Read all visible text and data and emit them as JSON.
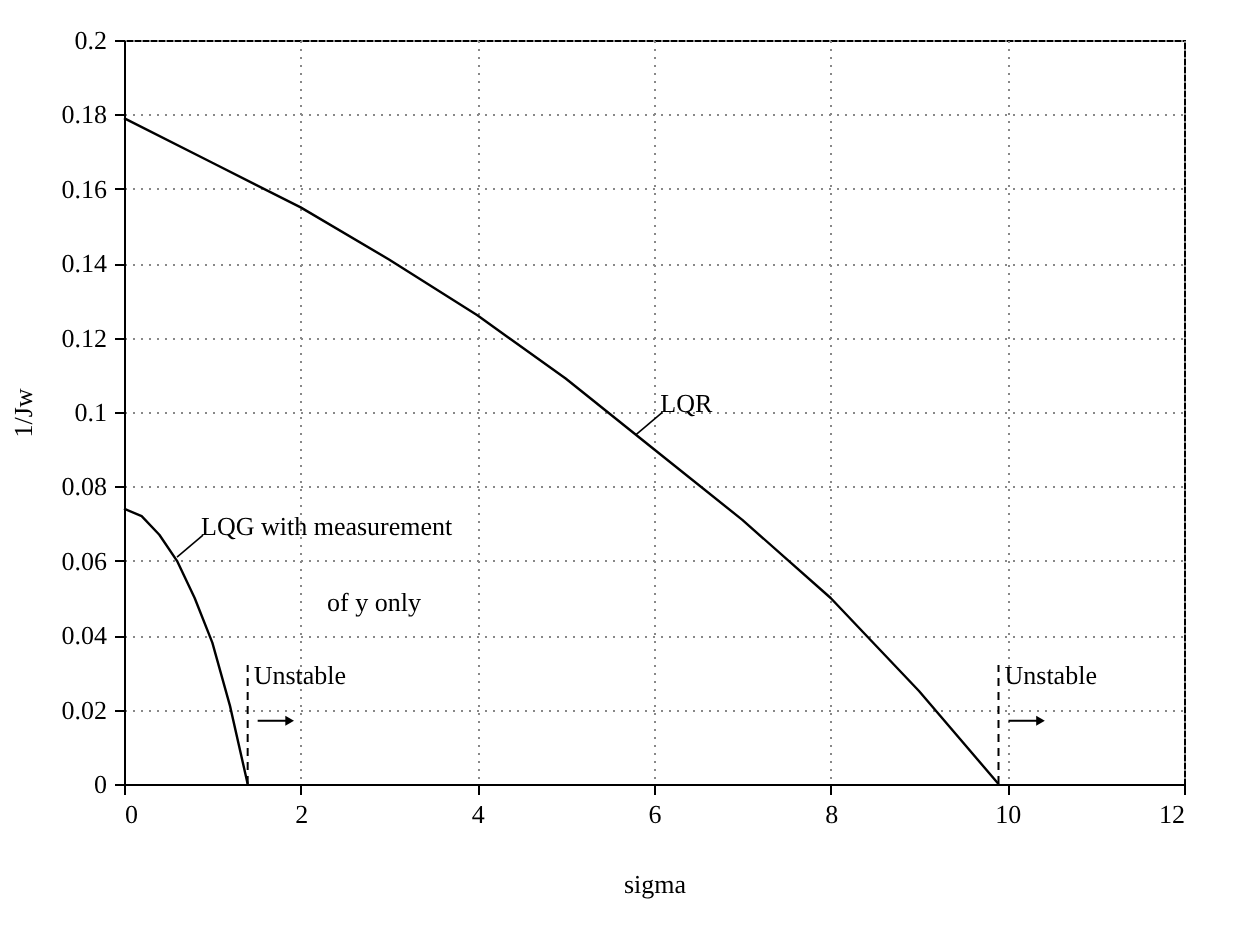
{
  "chart_data": {
    "type": "line",
    "xlabel": "sigma",
    "ylabel": "1/Jw",
    "x": [
      0,
      1,
      2,
      3,
      4,
      5,
      6,
      7,
      8,
      9,
      9.9
    ],
    "series": [
      {
        "color": "#000000",
        "values": [
          0.179,
          0.167,
          0.155,
          0.141,
          0.126,
          0.109,
          0.09,
          0.071,
          0.05,
          0.025,
          0
        ]
      },
      {
        "color": "#000000",
        "x": [
          0,
          0.2,
          0.4,
          0.6,
          0.8,
          1.0,
          1.2,
          1.4
        ],
        "values": [
          0.074,
          0.072,
          0.067,
          0.06,
          0.05,
          0.038,
          0.021,
          0
        ]
      }
    ],
    "xlim": [
      0,
      12
    ],
    "xticks": [
      0,
      2,
      4,
      6,
      8,
      10,
      12
    ],
    "ylim": [
      0,
      0.2
    ],
    "yticks": [
      0,
      0.02,
      0.04,
      0.06,
      0.08,
      0.1,
      0.12,
      0.14,
      0.16,
      0.18,
      0.2
    ],
    "grid": true,
    "line_style": "solid",
    "marker": "none",
    "annotations": [
      {
        "text": "LQR",
        "x": 5.8,
        "y": 0.094
      },
      {
        "text": "LQG with measurement",
        "x": 0.6,
        "y": 0.061
      },
      "of y only"
    ],
    "ref_lines": [
      {
        "axis": "x",
        "value": 1.4,
        "label": "Unstable",
        "line_style": "dashed"
      },
      {
        "axis": "x",
        "value": 9.9,
        "label": "Unstable",
        "line_style": "dashed"
      }
    ]
  }
}
